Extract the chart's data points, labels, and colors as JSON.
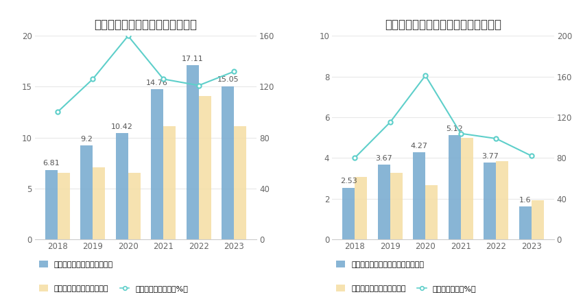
{
  "chart1": {
    "title": "历年经营现金流入、营业收入情况",
    "years": [
      "2018",
      "2019",
      "2020",
      "2021",
      "2022",
      "2023"
    ],
    "blue_bars": [
      6.81,
      9.2,
      10.42,
      14.76,
      17.11,
      15.05
    ],
    "yellow_bars": [
      6.5,
      7.1,
      6.5,
      11.1,
      14.1,
      11.1
    ],
    "line_values": [
      100,
      126,
      160,
      126,
      121,
      132
    ],
    "left_ylim": [
      0,
      20
    ],
    "right_ylim": [
      0,
      160
    ],
    "left_yticks": [
      0,
      5,
      10,
      15,
      20
    ],
    "right_yticks": [
      0,
      40,
      80,
      120,
      160
    ],
    "legend1": "左轴：经营现金流入（亿元）",
    "legend2": "左轴：营业总收入（亿元）",
    "legend3": "右轴：营收现金比（%）"
  },
  "chart2": {
    "title": "历年经营现金流净额、归母净利润情况",
    "years": [
      "2018",
      "2019",
      "2020",
      "2021",
      "2022",
      "2023"
    ],
    "blue_bars": [
      2.53,
      3.67,
      4.27,
      5.12,
      3.77,
      1.6
    ],
    "yellow_bars": [
      3.05,
      3.25,
      2.65,
      5.0,
      3.85,
      1.9
    ],
    "line_values": [
      80,
      115,
      161,
      104,
      99,
      82
    ],
    "left_ylim": [
      0,
      10
    ],
    "right_ylim": [
      0,
      200
    ],
    "left_yticks": [
      0,
      2,
      4,
      6,
      8,
      10
    ],
    "right_yticks": [
      0,
      40,
      80,
      120,
      160,
      200
    ],
    "legend1": "左轴：经营活动现金流净额（亿元）",
    "legend2": "左轴：归母净利润（亿元）",
    "legend3": "右轴：净现比（%）"
  },
  "blue_bar_color": "#7BADD1",
  "yellow_bar_color": "#F5DFA8",
  "line_color": "#5ECFCA",
  "bar_width": 0.35,
  "bg_color": "#FFFFFF",
  "plot_bg_color": "#F8F9FA",
  "text_color": "#666666",
  "title_fontsize": 12,
  "label_fontsize": 8,
  "tick_fontsize": 8.5,
  "annotation_fontsize": 8
}
